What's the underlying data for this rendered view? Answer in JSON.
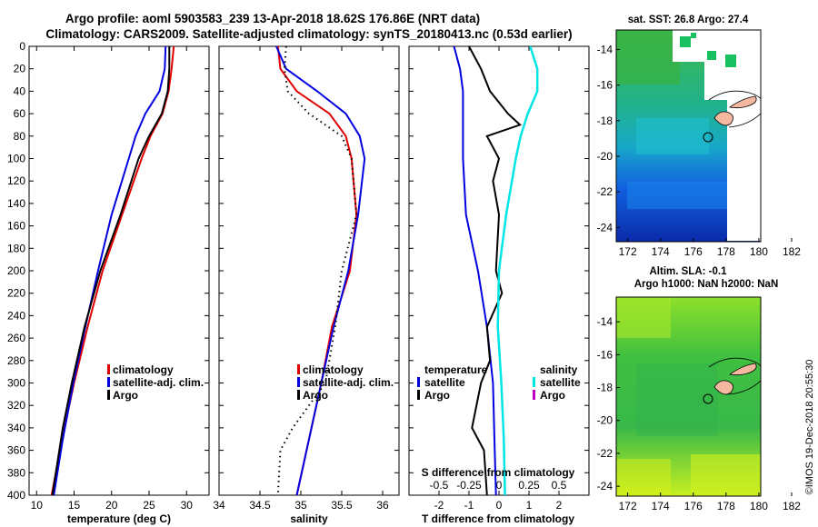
{
  "header": {
    "line1": "Argo profile: aoml 5903583_239 13-Apr-2018 18.62S 176.86E (NRT data)",
    "line2": "Climatology: CARS2009. Satellite-adjusted climatology: synTS_20180413.nc (0.53d earlier)"
  },
  "colors": {
    "climatology": "#e00000",
    "satellite": "#0000e0",
    "argo": "#000000",
    "satellite_salinity": "#00e5e5",
    "argo_salinity": "#c000c0"
  },
  "chart_data": [
    {
      "type": "line",
      "id": "temperature",
      "xlabel": "temperature (deg C)",
      "ylabel": "",
      "xlim": [
        9,
        33
      ],
      "ylim": [
        400,
        0
      ],
      "xticks": [
        10,
        15,
        20,
        25,
        30
      ],
      "yticks": [
        0,
        20,
        40,
        60,
        80,
        100,
        120,
        140,
        160,
        180,
        200,
        220,
        240,
        260,
        280,
        300,
        320,
        340,
        360,
        380,
        400
      ],
      "legend": [
        "climatology",
        "satellite-adj. clim.",
        "Argo"
      ],
      "series": [
        {
          "name": "climatology",
          "color_key": "climatology",
          "style": "solid",
          "depth": [
            0,
            20,
            40,
            60,
            80,
            100,
            150,
            200,
            250,
            300,
            350,
            400
          ],
          "values": [
            28.3,
            28.0,
            27.6,
            26.8,
            25.2,
            24.0,
            21.4,
            18.8,
            16.8,
            15.0,
            13.4,
            12.0
          ]
        },
        {
          "name": "satellite-adj. clim.",
          "color_key": "satellite",
          "style": "solid",
          "depth": [
            0,
            20,
            40,
            60,
            80,
            100,
            150,
            200,
            250,
            300,
            350,
            400
          ],
          "values": [
            27.2,
            27.1,
            26.4,
            24.5,
            23.2,
            22.3,
            20.0,
            18.2,
            16.5,
            14.9,
            13.5,
            12.3
          ]
        },
        {
          "name": "Argo",
          "color_key": "argo",
          "style": "solid",
          "depth": [
            0,
            20,
            40,
            60,
            80,
            100,
            150,
            200,
            250,
            300,
            340,
            400
          ],
          "values": [
            27.7,
            27.7,
            27.5,
            26.7,
            25.0,
            23.6,
            21.2,
            18.5,
            16.4,
            14.7,
            13.5,
            12.1
          ]
        }
      ]
    },
    {
      "type": "line",
      "id": "salinity",
      "xlabel": "salinity",
      "ylabel": "",
      "xlim": [
        34,
        36.2
      ],
      "ylim": [
        400,
        0
      ],
      "xticks": [
        34,
        34.5,
        35,
        35.5,
        36
      ],
      "xtick_labels": [
        "34",
        "34.5",
        "35",
        "35.5",
        "36"
      ],
      "legend": [
        "climatology",
        "satellite-adj. clim.",
        "Argo"
      ],
      "series": [
        {
          "name": "climatology",
          "color_key": "climatology",
          "style": "solid",
          "depth": [
            0,
            20,
            40,
            60,
            80,
            100,
            150,
            200,
            250,
            300,
            350,
            400
          ],
          "values": [
            34.72,
            34.75,
            34.95,
            35.35,
            35.55,
            35.62,
            35.68,
            35.6,
            35.38,
            35.25,
            35.1,
            34.95
          ]
        },
        {
          "name": "satellite-adj. clim.",
          "color_key": "satellite",
          "style": "solid",
          "depth": [
            0,
            20,
            40,
            60,
            80,
            100,
            150,
            200,
            250,
            300,
            350,
            400
          ],
          "values": [
            34.7,
            34.82,
            35.2,
            35.55,
            35.72,
            35.78,
            35.7,
            35.58,
            35.4,
            35.25,
            35.1,
            34.95
          ]
        },
        {
          "name": "Argo",
          "color_key": "argo",
          "style": "dotted",
          "depth": [
            0,
            20,
            40,
            60,
            80,
            100,
            150,
            200,
            250,
            300,
            340,
            360,
            400
          ],
          "values": [
            34.82,
            34.8,
            34.84,
            35.1,
            35.5,
            35.62,
            35.68,
            35.5,
            35.42,
            35.3,
            34.9,
            34.75,
            34.72
          ]
        }
      ]
    },
    {
      "type": "line",
      "id": "difference",
      "xlabel": "T difference from climatology",
      "xlabel2": "S difference from climatology",
      "xlim": [
        -3,
        3
      ],
      "ylim": [
        400,
        0
      ],
      "xticks": [
        -2,
        -1,
        0,
        1,
        2
      ],
      "xtick_labels": [
        "-2",
        "-1",
        "0",
        "1",
        "2"
      ],
      "xticks2": [
        -0.5,
        -0.25,
        0,
        0.25,
        0.5
      ],
      "xtick2_labels": [
        "-0.5",
        "-0.25",
        "0",
        "0.25",
        "0.5"
      ],
      "legend_temperature_title": "temperature",
      "legend_salinity_title": "salinity",
      "legend_temperature": [
        "satellite",
        "Argo"
      ],
      "legend_salinity": [
        "satellite",
        "Argo"
      ],
      "series": [
        {
          "name": "T satellite",
          "color_key": "satellite",
          "depth": [
            0,
            20,
            40,
            60,
            80,
            100,
            150,
            200,
            250,
            300,
            350,
            400
          ],
          "values": [
            -1.5,
            -1.3,
            -1.2,
            -1.2,
            -1.2,
            -1.2,
            -1.1,
            -0.7,
            -0.4,
            -0.2,
            -0.15,
            -0.1
          ]
        },
        {
          "name": "T Argo",
          "color_key": "argo",
          "depth": [
            0,
            20,
            40,
            60,
            70,
            80,
            100,
            120,
            150,
            200,
            220,
            250,
            280,
            300,
            340,
            360,
            400
          ],
          "values": [
            -1.0,
            -0.6,
            -0.3,
            0.3,
            0.7,
            -0.4,
            0.0,
            -0.2,
            0.0,
            -0.1,
            0.1,
            -0.4,
            -0.3,
            -0.6,
            -0.9,
            -0.5,
            -0.4
          ]
        },
        {
          "name": "S satellite",
          "color_key": "satellite_salinity",
          "depth": [
            0,
            20,
            40,
            60,
            80,
            100,
            150,
            200,
            250,
            300,
            350,
            400
          ],
          "values": [
            0.26,
            0.32,
            0.32,
            0.24,
            0.18,
            0.14,
            0.06,
            0.0,
            -0.01,
            0.02,
            0.04,
            0.05
          ]
        }
      ]
    }
  ],
  "maps": {
    "sst": {
      "title": "sat. SST: 26.8 Argo: 27.4",
      "xticks": [
        "172",
        "174",
        "176",
        "178",
        "180",
        "182"
      ],
      "yticks": [
        "-14",
        "-16",
        "-18",
        "-20",
        "-22",
        "-24"
      ]
    },
    "sla": {
      "title1": "Altim. SLA: -0.1",
      "title2": "Argo h1000: NaN h2000: NaN",
      "xticks": [
        "172",
        "174",
        "176",
        "178",
        "180",
        "182"
      ],
      "yticks": [
        "-14",
        "-16",
        "-18",
        "-20",
        "-22",
        "-24"
      ]
    }
  },
  "footer": {
    "stamp": "©IMOS 19-Dec-2018 20:55:30"
  }
}
